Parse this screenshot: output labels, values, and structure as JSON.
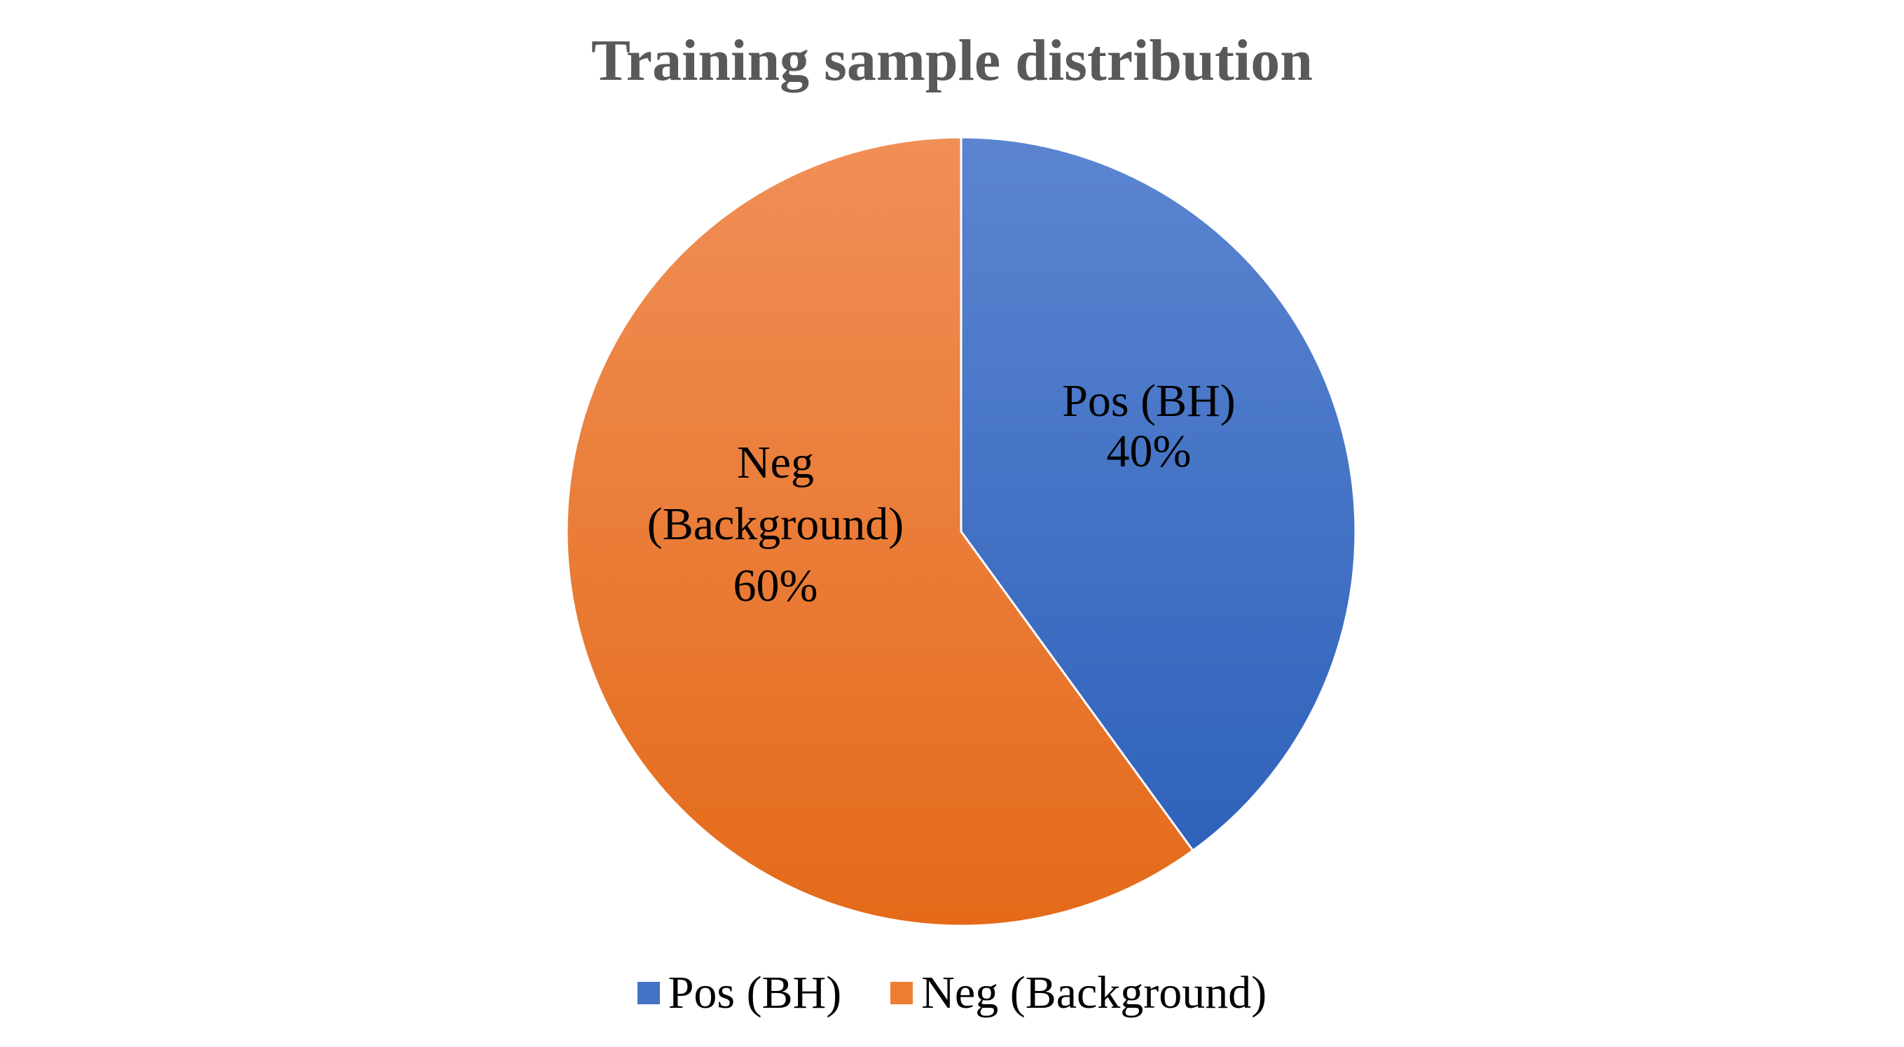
{
  "chart_data": {
    "type": "pie",
    "title": "Training sample distribution",
    "slices": [
      {
        "name": "Pos (BH)",
        "value": 40,
        "label_lines": [
          "Pos (BH)",
          "40%"
        ],
        "color": "#4472C4"
      },
      {
        "name": "Neg (Background)",
        "value": 60,
        "label_lines": [
          "Neg",
          "(Background)",
          "60%"
        ],
        "color": "#ED7D31"
      }
    ],
    "legend_position": "bottom"
  }
}
